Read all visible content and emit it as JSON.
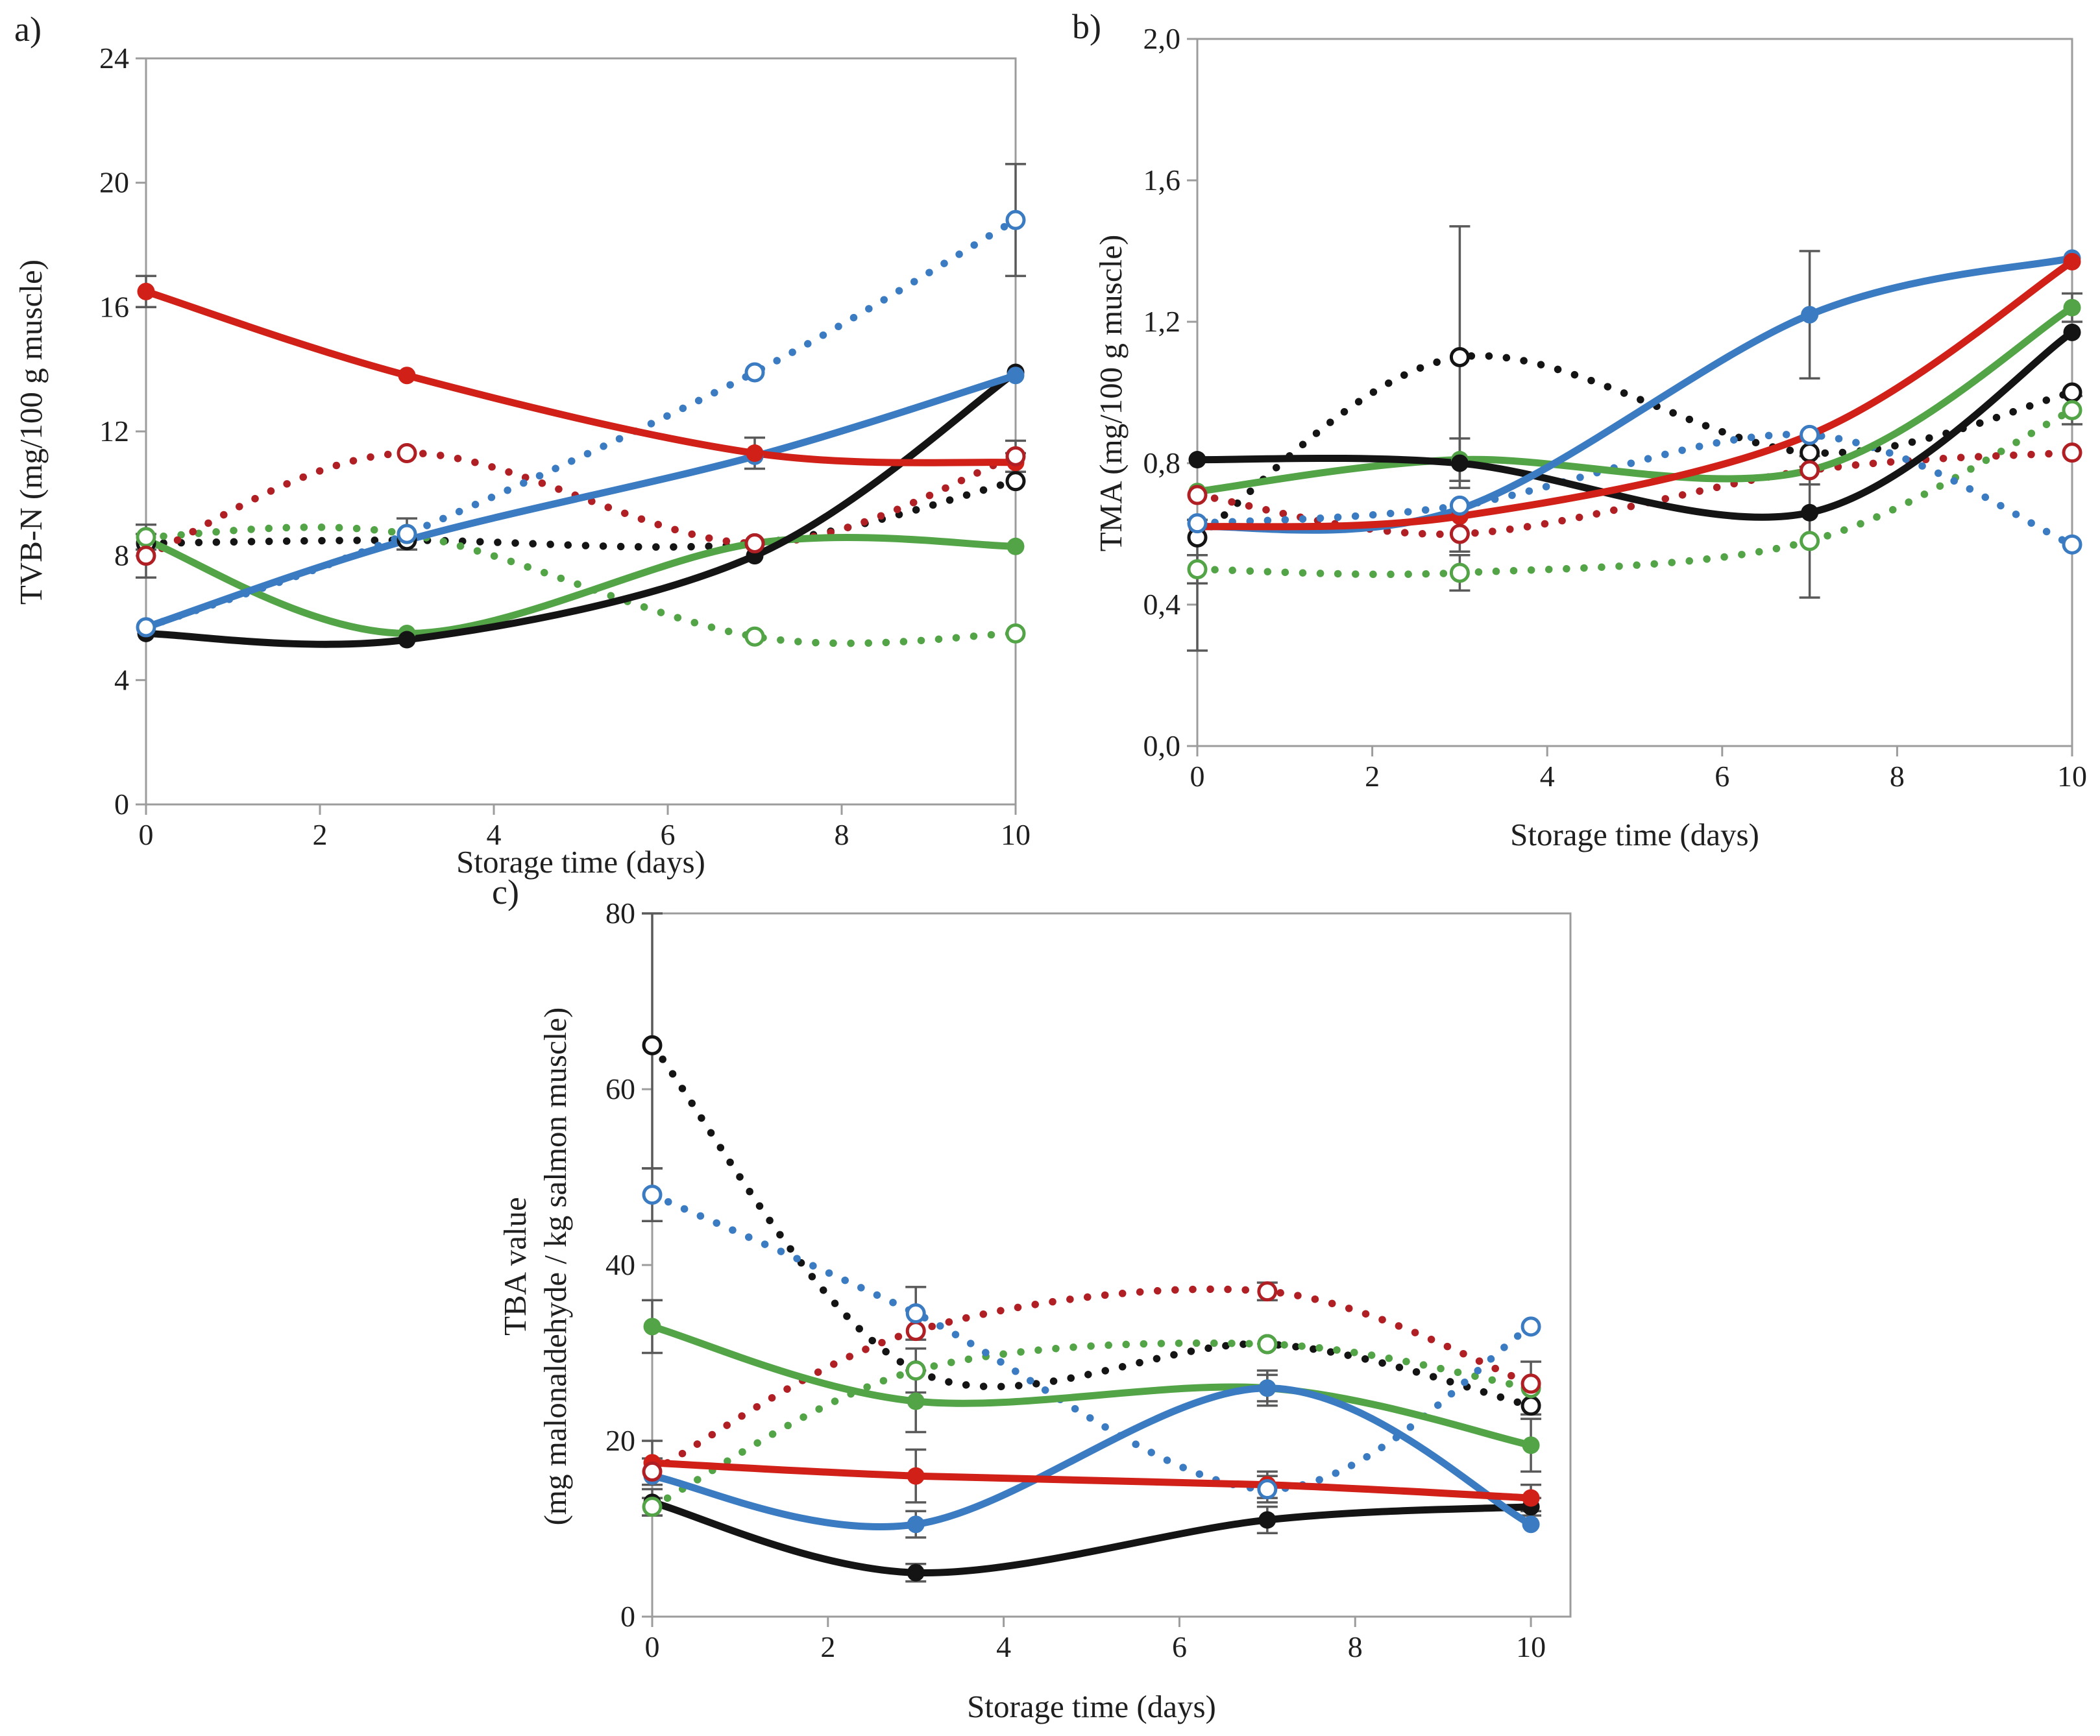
{
  "colors": {
    "black": "#141414",
    "red_solid": "#d02018",
    "red_dotted": "#b01f24",
    "green": "#52a447",
    "blue": "#3a7bc2",
    "axis": "#9c9c9c",
    "error_bar": "#595959",
    "text": "#1f1f1f",
    "background": "#ffffff"
  },
  "figure": {
    "panels": [
      {
        "panel_label": "a)",
        "x_label": "Storage time (days)",
        "y_label": "TVB-N (mg/100 g muscle)"
      },
      {
        "panel_label": "b)",
        "x_label": "Storage time (days)",
        "y_label": "TMA (mg/100 g muscle)"
      },
      {
        "panel_label": "c)",
        "x_label": "Storage time (days)",
        "y_label_line1": "TBA value",
        "y_label_line2": "(mg malonaldehyde / kg salmon muscle)"
      }
    ]
  },
  "chart_data": [
    {
      "type": "line",
      "title": "a)",
      "xlabel": "Storage time (days)",
      "ylabel": "TVB-N (mg/100 g muscle)",
      "x": [
        0,
        3,
        7,
        10
      ],
      "xlim": [
        0,
        10
      ],
      "ylim": [
        0,
        24
      ],
      "xticks": [
        0,
        2,
        4,
        6,
        8,
        10
      ],
      "xtick_labels": [
        "0",
        "2",
        "4",
        "6",
        "8",
        "10"
      ],
      "yticks": [
        0,
        4,
        8,
        12,
        16,
        20,
        24
      ],
      "ytick_labels": [
        "0",
        "4",
        "8",
        "12",
        "16",
        "20",
        "24"
      ],
      "grid": false,
      "legend": null,
      "series": [
        {
          "name": "black-dotted",
          "color": "#141414",
          "line": "dotted",
          "marker": "open",
          "values": [
            8.4,
            8.5,
            8.4,
            10.4
          ],
          "err": [
            0,
            0,
            0,
            0
          ]
        },
        {
          "name": "green-dotted",
          "color": "#52a447",
          "line": "dotted",
          "marker": "open",
          "values": [
            8.6,
            8.7,
            5.4,
            5.5
          ],
          "err": [
            0.4,
            0.5,
            0,
            0
          ]
        },
        {
          "name": "red-dotted",
          "color": "#b01f24",
          "line": "dotted",
          "marker": "open",
          "values": [
            8.0,
            11.3,
            8.4,
            11.2
          ],
          "err": [
            0.7,
            0,
            0,
            0.5
          ]
        },
        {
          "name": "blue-dotted",
          "color": "#3a7bc2",
          "line": "dotted",
          "marker": "open",
          "values": [
            5.7,
            8.7,
            13.9,
            18.8
          ],
          "err": [
            0,
            0,
            0,
            1.8
          ]
        },
        {
          "name": "green-solid",
          "color": "#52a447",
          "line": "solid",
          "marker": "filled",
          "values": [
            8.5,
            5.5,
            8.4,
            8.3
          ],
          "err": [
            0,
            0,
            0,
            0
          ]
        },
        {
          "name": "black-solid",
          "color": "#141414",
          "line": "solid",
          "marker": "filled",
          "values": [
            5.5,
            5.3,
            8.0,
            13.9
          ],
          "err": [
            0,
            0,
            0,
            0
          ]
        },
        {
          "name": "blue-solid",
          "color": "#3a7bc2",
          "line": "solid",
          "marker": "filled",
          "values": [
            5.7,
            8.5,
            11.2,
            13.8
          ],
          "err": [
            0,
            0,
            0,
            0
          ]
        },
        {
          "name": "red-solid",
          "color": "#d02018",
          "line": "solid",
          "marker": "filled",
          "values": [
            16.5,
            13.8,
            11.3,
            11.0
          ],
          "err": [
            0.5,
            0,
            0.5,
            0.3
          ]
        }
      ]
    },
    {
      "type": "line",
      "title": "b)",
      "xlabel": "Storage time (days)",
      "ylabel": "TMA (mg/100 g muscle)",
      "x": [
        0,
        3,
        7,
        10
      ],
      "xlim": [
        0,
        10
      ],
      "ylim": [
        0.0,
        2.0
      ],
      "xticks": [
        0,
        2,
        4,
        6,
        8,
        10
      ],
      "xtick_labels": [
        "0",
        "2",
        "4",
        "6",
        "8",
        "10"
      ],
      "yticks": [
        0.0,
        0.4,
        0.8,
        1.2,
        1.6,
        2.0
      ],
      "ytick_labels": [
        "0,0",
        "0,4",
        "0,8",
        "1,2",
        "1,6",
        "2,0"
      ],
      "grid": false,
      "legend": null,
      "series": [
        {
          "name": "black-dotted",
          "color": "#141414",
          "line": "dotted",
          "marker": "open",
          "values": [
            0.59,
            1.1,
            0.83,
            1.0
          ],
          "err": [
            [
              0.32,
              0.05
            ],
            0.37,
            0.04,
            0
          ]
        },
        {
          "name": "green-dotted",
          "color": "#52a447",
          "line": "dotted",
          "marker": "open",
          "values": [
            0.5,
            0.49,
            0.58,
            0.95
          ],
          "err": [
            0.04,
            0.05,
            0.16,
            0.04
          ]
        },
        {
          "name": "red-dotted",
          "color": "#b01f24",
          "line": "dotted",
          "marker": "open",
          "values": [
            0.71,
            0.6,
            0.78,
            0.83
          ],
          "err": [
            0,
            0.05,
            0.04,
            0
          ]
        },
        {
          "name": "blue-dotted",
          "color": "#3a7bc2",
          "line": "dotted",
          "marker": "open",
          "values": [
            0.63,
            0.68,
            0.88,
            0.57
          ],
          "err": [
            0,
            0,
            0,
            0
          ]
        },
        {
          "name": "green-solid",
          "color": "#52a447",
          "line": "solid",
          "marker": "filled",
          "values": [
            0.72,
            0.81,
            0.78,
            1.24
          ],
          "err": [
            0,
            0.06,
            0,
            0.04
          ]
        },
        {
          "name": "black-solid",
          "color": "#141414",
          "line": "solid",
          "marker": "filled",
          "values": [
            0.81,
            0.8,
            0.66,
            1.17
          ],
          "err": [
            0,
            0,
            0,
            0
          ]
        },
        {
          "name": "blue-solid",
          "color": "#3a7bc2",
          "line": "solid",
          "marker": "filled",
          "values": [
            0.62,
            0.67,
            1.22,
            1.38
          ],
          "err": [
            0,
            0,
            0.18,
            0
          ]
        },
        {
          "name": "red-solid",
          "color": "#d02018",
          "line": "solid",
          "marker": "filled",
          "values": [
            0.62,
            0.65,
            0.88,
            1.37
          ],
          "err": [
            0,
            0,
            0,
            0
          ]
        }
      ]
    },
    {
      "type": "line",
      "title": "c)",
      "xlabel": "Storage time (days)",
      "ylabel": "TBA value (mg malonaldehyde / kg salmon muscle)",
      "x": [
        0,
        3,
        7,
        10
      ],
      "xlim": [
        0,
        10.45
      ],
      "ylim": [
        0,
        80
      ],
      "xticks": [
        0,
        2,
        4,
        6,
        8,
        10
      ],
      "xtick_labels": [
        "0",
        "2",
        "4",
        "6",
        "8",
        "10"
      ],
      "yticks": [
        0,
        20,
        40,
        60,
        80
      ],
      "ytick_labels": [
        "0",
        "20",
        "40",
        "60",
        "80"
      ],
      "grid": false,
      "legend": null,
      "series": [
        {
          "name": "black-dotted",
          "color": "#141414",
          "line": "dotted",
          "marker": "open",
          "values": [
            65,
            28,
            31,
            24
          ],
          "err": [
            [
              14,
              15
            ],
            0,
            0,
            0
          ]
        },
        {
          "name": "green-dotted",
          "color": "#52a447",
          "line": "dotted",
          "marker": "open",
          "values": [
            12.5,
            28,
            31,
            26
          ],
          "err": [
            1,
            2.5,
            0,
            3
          ]
        },
        {
          "name": "red-dotted",
          "color": "#b01f24",
          "line": "dotted",
          "marker": "open",
          "values": [
            16.5,
            32.5,
            37,
            26.5
          ],
          "err": [
            1.5,
            0,
            1,
            0
          ]
        },
        {
          "name": "blue-dotted",
          "color": "#3a7bc2",
          "line": "dotted",
          "marker": "open",
          "values": [
            48,
            34.5,
            14.5,
            33
          ],
          "err": [
            3,
            3,
            1.5,
            0
          ]
        },
        {
          "name": "green-solid",
          "color": "#52a447",
          "line": "solid",
          "marker": "filled",
          "values": [
            33,
            24.5,
            26,
            19.5
          ],
          "err": [
            3,
            3.5,
            2,
            3
          ]
        },
        {
          "name": "black-solid",
          "color": "#141414",
          "line": "solid",
          "marker": "filled",
          "values": [
            13,
            5,
            11,
            12.5
          ],
          "err": [
            1.5,
            1,
            1.5,
            1
          ]
        },
        {
          "name": "blue-solid",
          "color": "#3a7bc2",
          "line": "solid",
          "marker": "filled",
          "values": [
            16,
            10.5,
            26,
            10.5
          ],
          "err": [
            0,
            1.5,
            1.5,
            0
          ]
        },
        {
          "name": "red-solid",
          "color": "#d02018",
          "line": "solid",
          "marker": "filled",
          "values": [
            17.5,
            16,
            15,
            13.5
          ],
          "err": [
            2.5,
            3,
            1.5,
            1.5
          ]
        }
      ]
    }
  ]
}
